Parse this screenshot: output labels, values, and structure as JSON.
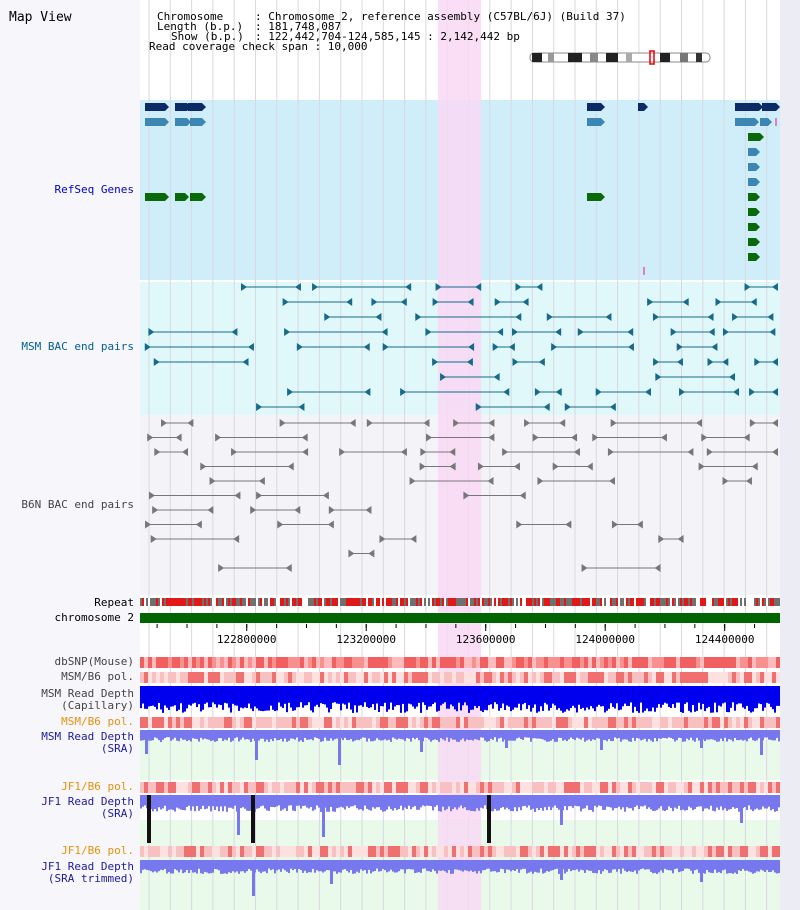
{
  "view_title": "Map View",
  "info": {
    "chromosome_key": "Chromosome",
    "chromosome_val": ": Chromosome 2, reference assembly (C57BL/6J) (Build 37)",
    "length_key": "Length (b.p.)",
    "length_val": ": 181,748,087",
    "show_key": "Show (b.p.)",
    "show_val": ": 122,442,704-124,585,145 : 2,142,442 bp",
    "span_line": "Read coverage check span : 10,000"
  },
  "tracks": {
    "refseq": "RefSeq Genes",
    "msm_bac": "MSM BAC end pairs",
    "b6n_bac": "B6N BAC end pairs",
    "repeat": "Repeat",
    "chromosome": "chromosome 2",
    "dbsnp": "dbSNP(Mouse)",
    "msm_b6_pol": "MSM/B6 pol.",
    "msm_depth_cap_1": "MSM Read Depth",
    "msm_depth_cap_2": "(Capillary)",
    "msm_b6_pol_sra": "MSM/B6 pol.",
    "msm_depth_sra_1": "MSM Read Depth",
    "msm_depth_sra_2": "(SRA)",
    "jf1_b6_pol": "JF1/B6 pol.",
    "jf1_depth_1": "JF1 Read Depth",
    "jf1_depth_2": "(SRA)",
    "jf1_b6_pol_2": "JF1/B6 pol.",
    "jf1_trim_1": "JF1 Read Depth",
    "jf1_trim_2": "(SRA trimmed)"
  },
  "axis": {
    "ticks": [
      {
        "label": "122800000",
        "value": 122800000
      },
      {
        "label": "123200000",
        "value": 123200000
      },
      {
        "label": "123600000",
        "value": 123600000
      },
      {
        "label": "124000000",
        "value": 124000000
      },
      {
        "label": "124400000",
        "value": 124400000
      }
    ],
    "range": [
      122442704,
      124585145
    ],
    "highlight": [
      123440000,
      123585000
    ]
  },
  "colors": {
    "refseq_bg": "#cfeefa",
    "msm_bg": "#e0f8fa",
    "highlight": "#f8d8f4",
    "gene_dark": "#0c2a66",
    "gene_mid": "#3c86b4",
    "gene_green": "#0a6a0a",
    "msm_feature": "#176a8a",
    "b6n_feature": "#777777",
    "chrom_green": "#006400",
    "depth_blue": "#0000ee",
    "depth_lilac": "#7777ee",
    "pol_red": "#e83030"
  }
}
